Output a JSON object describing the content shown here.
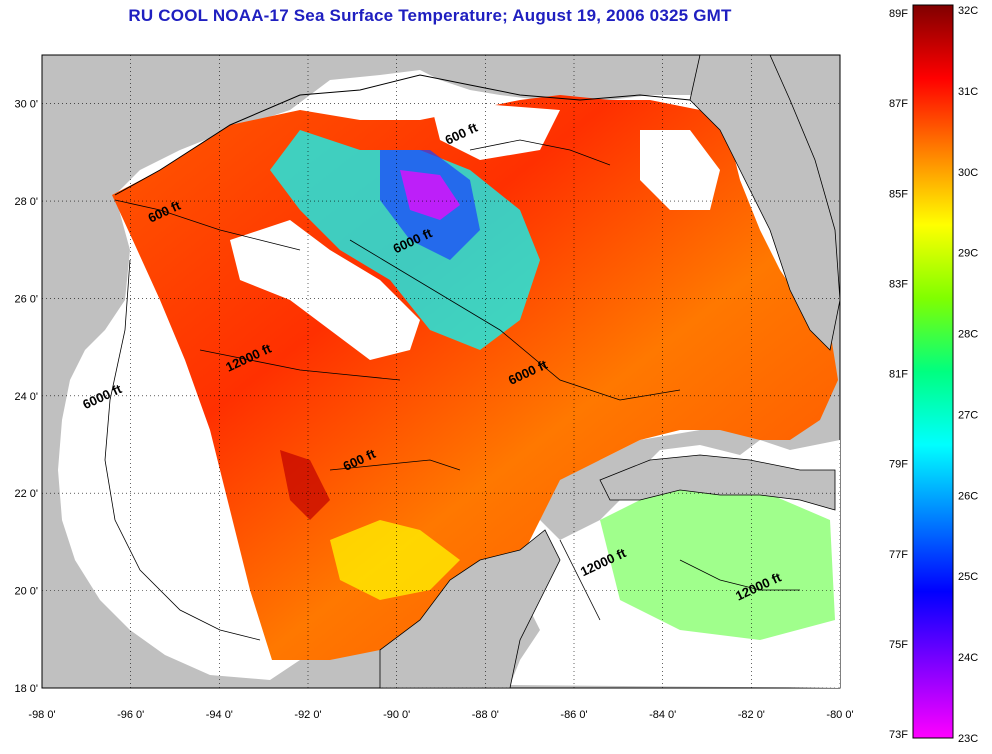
{
  "title": "RU COOL  NOAA-17  Sea Surface Temperature;  August 19, 2006 0325 GMT",
  "map": {
    "lon_ticks": [
      "-98 0'",
      "-96 0'",
      "-94 0'",
      "-92 0'",
      "-90 0'",
      "-88 0'",
      "-86 0'",
      "-84 0'",
      "-82 0'",
      "-80 0'"
    ],
    "lat_ticks": [
      "18 0'",
      "20 0'",
      "22 0'",
      "24 0'",
      "26 0'",
      "28 0'",
      "30 0'"
    ],
    "lon_range": [
      -98,
      -80
    ],
    "lat_range": [
      18,
      31
    ],
    "grid": "dotted",
    "land_color": "#c0c0c0",
    "no_data_color": "#ffffff",
    "contour_labels": [
      {
        "text": "600 ft",
        "lon": -88.5,
        "lat": 29.3
      },
      {
        "text": "600 ft",
        "lon": -95.2,
        "lat": 27.7
      },
      {
        "text": "6000 ft",
        "lon": -89.6,
        "lat": 27.1
      },
      {
        "text": "12000 ft",
        "lon": -93.3,
        "lat": 24.7
      },
      {
        "text": "6000 ft",
        "lon": -87.0,
        "lat": 24.4
      },
      {
        "text": "6000 ft",
        "lon": -96.6,
        "lat": 23.9
      },
      {
        "text": "600 ft",
        "lon": -90.8,
        "lat": 22.6
      },
      {
        "text": "12000 ft",
        "lon": -85.3,
        "lat": 20.5
      },
      {
        "text": "12000 ft",
        "lon": -81.8,
        "lat": 20.0
      }
    ]
  },
  "colorbar": {
    "f_labels": [
      "89F",
      "87F",
      "85F",
      "83F",
      "81F",
      "79F",
      "77F",
      "75F",
      "73F"
    ],
    "c_labels": [
      "32C",
      "31C",
      "30C",
      "29C",
      "28C",
      "27C",
      "26C",
      "25C",
      "24C",
      "23C"
    ],
    "colors": [
      "#ff00ff",
      "#8000ff",
      "#0000ff",
      "#0080ff",
      "#00ffff",
      "#00ff80",
      "#80ff00",
      "#ffff00",
      "#ff8000",
      "#ff0000",
      "#800000"
    ]
  }
}
